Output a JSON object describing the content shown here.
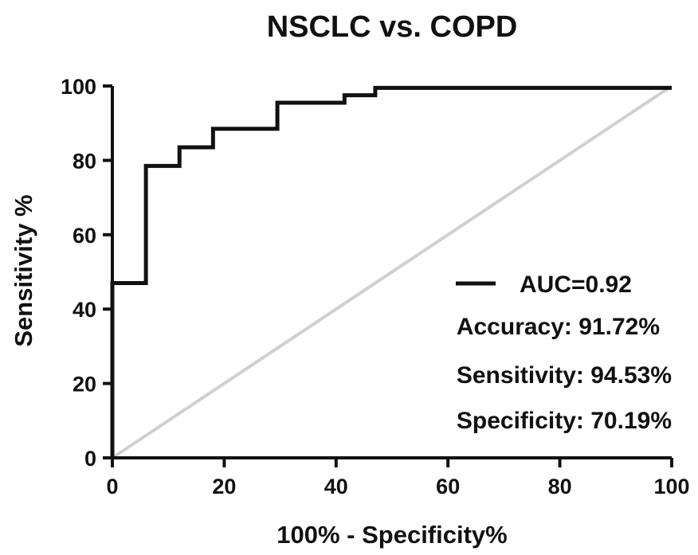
{
  "chart_data": {
    "type": "line",
    "title": "NSCLC vs. COPD",
    "xlabel": "100% - Specificity%",
    "ylabel": "Sensitivity %",
    "xlim": [
      0,
      100
    ],
    "ylim": [
      0,
      100
    ],
    "xticks": [
      "0",
      "20",
      "40",
      "60",
      "80",
      "100"
    ],
    "yticks": [
      "0",
      "20",
      "40",
      "60",
      "80",
      "100"
    ],
    "grid": false,
    "legend_position": "bottom-right",
    "series": [
      {
        "name": "AUC=0.92",
        "color": "#111111",
        "step": true,
        "x": [
          0,
          0,
          6,
          6,
          12,
          12,
          18,
          18,
          29.5,
          29.5,
          41.5,
          41.5,
          47,
          47,
          100
        ],
        "y": [
          0,
          47,
          47,
          78.5,
          78.5,
          83.5,
          83.5,
          88.5,
          88.5,
          95.5,
          95.5,
          97.5,
          97.5,
          99.5,
          99.5
        ]
      },
      {
        "name": "",
        "color": "#d0d0d0",
        "role": "reference-diagonal",
        "x": [
          0,
          100
        ],
        "y": [
          0,
          100
        ]
      }
    ],
    "annotations": [
      "Accuracy: 91.72%",
      "Sensitivity: 94.53%",
      "Specificity: 70.19%"
    ]
  }
}
